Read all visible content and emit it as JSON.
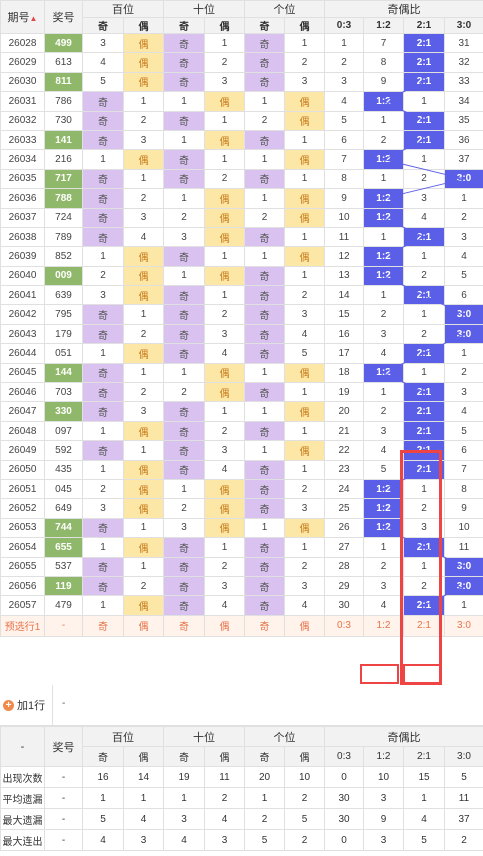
{
  "header": {
    "issue_label": "期号",
    "sort_icon": "sort-arrows-icon",
    "prize_label": "奖号",
    "groups": [
      "百位",
      "十位",
      "个位",
      "奇偶比"
    ],
    "sub": [
      "奇",
      "偶",
      "奇",
      "偶",
      "奇",
      "偶",
      "0:3",
      "1:2",
      "2:1",
      "3:0"
    ]
  },
  "rows": [
    {
      "issue": "26028",
      "prize": "499",
      "green": true,
      "d": [
        "3",
        "偶",
        "奇",
        "1",
        "奇",
        "1"
      ],
      "r": [
        "1",
        "7",
        "2:1",
        "31"
      ],
      "hit": 2
    },
    {
      "issue": "26029",
      "prize": "613",
      "green": false,
      "d": [
        "4",
        "偶",
        "奇",
        "2",
        "奇",
        "2"
      ],
      "r": [
        "2",
        "8",
        "2:1",
        "32"
      ],
      "hit": 2
    },
    {
      "issue": "26030",
      "prize": "811",
      "green": true,
      "d": [
        "5",
        "偶",
        "奇",
        "3",
        "奇",
        "3"
      ],
      "r": [
        "3",
        "9",
        "2:1",
        "33"
      ],
      "hit": 2
    },
    {
      "issue": "26031",
      "prize": "786",
      "green": false,
      "d": [
        "奇",
        "1",
        "1",
        "偶",
        "1",
        "偶"
      ],
      "r": [
        "4",
        "1:2",
        "1",
        "34"
      ],
      "hit": 1
    },
    {
      "issue": "26032",
      "prize": "730",
      "green": false,
      "d": [
        "奇",
        "2",
        "奇",
        "1",
        "2",
        "偶"
      ],
      "r": [
        "5",
        "1",
        "2:1",
        "35"
      ],
      "hit": 2
    },
    {
      "issue": "26033",
      "prize": "141",
      "green": true,
      "d": [
        "奇",
        "3",
        "1",
        "偶",
        "奇",
        "1"
      ],
      "r": [
        "6",
        "2",
        "2:1",
        "36"
      ],
      "hit": 2
    },
    {
      "issue": "26034",
      "prize": "216",
      "green": false,
      "d": [
        "1",
        "偶",
        "奇",
        "1",
        "1",
        "偶"
      ],
      "r": [
        "7",
        "1:2",
        "1",
        "37"
      ],
      "hit": 1
    },
    {
      "issue": "26035",
      "prize": "717",
      "green": true,
      "d": [
        "奇",
        "1",
        "奇",
        "2",
        "奇",
        "1"
      ],
      "r": [
        "8",
        "1",
        "2",
        "3:0"
      ],
      "hit": 3
    },
    {
      "issue": "26036",
      "prize": "788",
      "green": true,
      "d": [
        "奇",
        "2",
        "1",
        "偶",
        "1",
        "偶"
      ],
      "r": [
        "9",
        "1:2",
        "3",
        "1"
      ],
      "hit": 1
    },
    {
      "issue": "26037",
      "prize": "724",
      "green": false,
      "d": [
        "奇",
        "3",
        "2",
        "偶",
        "2",
        "偶"
      ],
      "r": [
        "10",
        "1:2",
        "4",
        "2"
      ],
      "hit": 1
    },
    {
      "issue": "26038",
      "prize": "789",
      "green": false,
      "d": [
        "奇",
        "4",
        "3",
        "偶",
        "奇",
        "1"
      ],
      "r": [
        "11",
        "1",
        "2:1",
        "3"
      ],
      "hit": 2
    },
    {
      "issue": "26039",
      "prize": "852",
      "green": false,
      "d": [
        "1",
        "偶",
        "奇",
        "1",
        "1",
        "偶"
      ],
      "r": [
        "12",
        "1:2",
        "1",
        "4"
      ],
      "hit": 1
    },
    {
      "issue": "26040",
      "prize": "009",
      "green": true,
      "d": [
        "2",
        "偶",
        "1",
        "偶",
        "奇",
        "1"
      ],
      "r": [
        "13",
        "1:2",
        "2",
        "5"
      ],
      "hit": 1
    },
    {
      "issue": "26041",
      "prize": "639",
      "green": false,
      "d": [
        "3",
        "偶",
        "奇",
        "1",
        "奇",
        "2"
      ],
      "r": [
        "14",
        "1",
        "2:1",
        "6"
      ],
      "hit": 2
    },
    {
      "issue": "26042",
      "prize": "795",
      "green": false,
      "d": [
        "奇",
        "1",
        "奇",
        "2",
        "奇",
        "3"
      ],
      "r": [
        "15",
        "2",
        "1",
        "3:0"
      ],
      "hit": 3
    },
    {
      "issue": "26043",
      "prize": "179",
      "green": false,
      "d": [
        "奇",
        "2",
        "奇",
        "3",
        "奇",
        "4"
      ],
      "r": [
        "16",
        "3",
        "2",
        "3:0"
      ],
      "hit": 3
    },
    {
      "issue": "26044",
      "prize": "051",
      "green": false,
      "d": [
        "1",
        "偶",
        "奇",
        "4",
        "奇",
        "5"
      ],
      "r": [
        "17",
        "4",
        "2:1",
        "1"
      ],
      "hit": 2
    },
    {
      "issue": "26045",
      "prize": "144",
      "green": true,
      "d": [
        "奇",
        "1",
        "1",
        "偶",
        "1",
        "偶"
      ],
      "r": [
        "18",
        "1:2",
        "1",
        "2"
      ],
      "hit": 1
    },
    {
      "issue": "26046",
      "prize": "703",
      "green": false,
      "d": [
        "奇",
        "2",
        "2",
        "偶",
        "奇",
        "1"
      ],
      "r": [
        "19",
        "1",
        "2:1",
        "3"
      ],
      "hit": 2
    },
    {
      "issue": "26047",
      "prize": "330",
      "green": true,
      "d": [
        "奇",
        "3",
        "奇",
        "1",
        "1",
        "偶"
      ],
      "r": [
        "20",
        "2",
        "2:1",
        "4"
      ],
      "hit": 2
    },
    {
      "issue": "26048",
      "prize": "097",
      "green": false,
      "d": [
        "1",
        "偶",
        "奇",
        "2",
        "奇",
        "1"
      ],
      "r": [
        "21",
        "3",
        "2:1",
        "5"
      ],
      "hit": 2
    },
    {
      "issue": "26049",
      "prize": "592",
      "green": false,
      "d": [
        "奇",
        "1",
        "奇",
        "3",
        "1",
        "偶"
      ],
      "r": [
        "22",
        "4",
        "2:1",
        "6"
      ],
      "hit": 2
    },
    {
      "issue": "26050",
      "prize": "435",
      "green": false,
      "d": [
        "1",
        "偶",
        "奇",
        "4",
        "奇",
        "1"
      ],
      "r": [
        "23",
        "5",
        "2:1",
        "7"
      ],
      "hit": 2
    },
    {
      "issue": "26051",
      "prize": "045",
      "green": false,
      "d": [
        "2",
        "偶",
        "1",
        "偶",
        "奇",
        "2"
      ],
      "r": [
        "24",
        "1:2",
        "1",
        "8"
      ],
      "hit": 1
    },
    {
      "issue": "26052",
      "prize": "649",
      "green": false,
      "d": [
        "3",
        "偶",
        "2",
        "偶",
        "奇",
        "3"
      ],
      "r": [
        "25",
        "1:2",
        "2",
        "9"
      ],
      "hit": 1
    },
    {
      "issue": "26053",
      "prize": "744",
      "green": true,
      "d": [
        "奇",
        "1",
        "3",
        "偶",
        "1",
        "偶"
      ],
      "r": [
        "26",
        "1:2",
        "3",
        "10"
      ],
      "hit": 1
    },
    {
      "issue": "26054",
      "prize": "655",
      "green": true,
      "d": [
        "1",
        "偶",
        "奇",
        "1",
        "奇",
        "1"
      ],
      "r": [
        "27",
        "1",
        "2:1",
        "11"
      ],
      "hit": 2
    },
    {
      "issue": "26055",
      "prize": "537",
      "green": false,
      "d": [
        "奇",
        "1",
        "奇",
        "2",
        "奇",
        "2"
      ],
      "r": [
        "28",
        "2",
        "1",
        "3:0"
      ],
      "hit": 3
    },
    {
      "issue": "26056",
      "prize": "119",
      "green": true,
      "d": [
        "奇",
        "2",
        "奇",
        "3",
        "奇",
        "3"
      ],
      "r": [
        "29",
        "3",
        "2",
        "3:0"
      ],
      "hit": 3
    },
    {
      "issue": "26057",
      "prize": "479",
      "green": false,
      "d": [
        "1",
        "偶",
        "奇",
        "4",
        "奇",
        "4"
      ],
      "r": [
        "30",
        "4",
        "2:1",
        "1"
      ],
      "hit": 2
    }
  ],
  "preselect": {
    "label": "预选行1",
    "dash": "-",
    "d": [
      "奇",
      "偶",
      "奇",
      "偶",
      "奇",
      "偶"
    ],
    "r": [
      "0:3",
      "1:2",
      "2:1",
      "3:0"
    ]
  },
  "add_row": {
    "label": "加1行",
    "dash": "-"
  },
  "footer": {
    "dash": "-",
    "prize_label": "奖号",
    "groups": [
      "百位",
      "十位",
      "个位",
      "奇偶比"
    ],
    "sub": [
      "奇",
      "偶",
      "奇",
      "偶",
      "奇",
      "偶",
      "0:3",
      "1:2",
      "2:1",
      "3:0"
    ],
    "stats": [
      {
        "label": "出现次数",
        "dash": "-",
        "values": [
          "16",
          "14",
          "19",
          "11",
          "20",
          "10",
          "0",
          "10",
          "15",
          "5"
        ]
      },
      {
        "label": "平均遗漏",
        "dash": "-",
        "values": [
          "1",
          "1",
          "1",
          "2",
          "1",
          "2",
          "30",
          "3",
          "1",
          "11"
        ]
      },
      {
        "label": "最大遗漏",
        "dash": "-",
        "values": [
          "5",
          "4",
          "3",
          "4",
          "2",
          "5",
          "30",
          "9",
          "4",
          "37"
        ]
      },
      {
        "label": "最大连出",
        "dash": "-",
        "values": [
          "4",
          "3",
          "4",
          "3",
          "5",
          "2",
          "0",
          "3",
          "5",
          "2"
        ]
      }
    ]
  },
  "colors": {
    "odd": "#d9c2f0",
    "even": "#fde7a6",
    "green": "#8fb86a",
    "hit": "#5b5fe8",
    "highlight": "#ee4444",
    "orange": "#e8744a"
  }
}
